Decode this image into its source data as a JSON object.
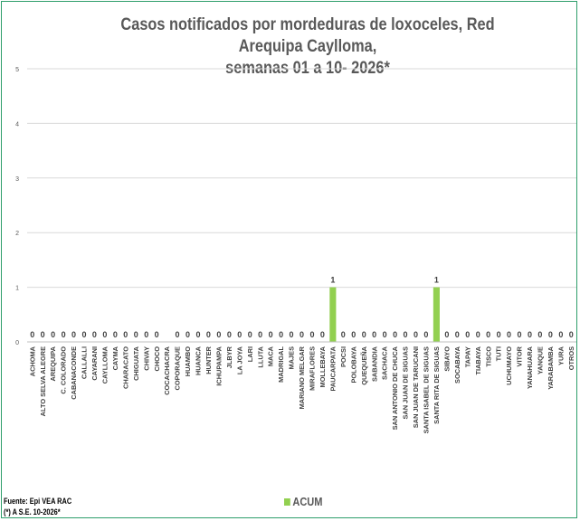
{
  "chart_data": {
    "type": "bar",
    "title": "Casos notificados por mordeduras de loxoceles, Red Arequipa Caylloma,",
    "subtitle": "semanas 01 a 10- 2026*",
    "ylim": [
      0,
      5
    ],
    "yticks": [
      "0",
      "1",
      "2",
      "3",
      "4",
      "5"
    ],
    "grid": true,
    "legend_position": "bottom",
    "categories": [
      "ACHOMA",
      "ALTO SELVA ALEGRE",
      "AREQUIPA",
      "C. COLORADO",
      "CABANACONDE",
      "CALLALLI",
      "CAYARANI",
      "CAYLLOMA",
      "CAYMA",
      "CHARACATO",
      "CHIGUATA",
      "CHIVAY",
      "CHOCO",
      "COCACHACRA",
      "COPORAQUE",
      "HUAMBO",
      "HUANCA",
      "HUNTER",
      "ICHUPAMPA",
      "JLBYR",
      "LA JOYA",
      "LARI",
      "LLUTA",
      "MACA",
      "MADRIGAL",
      "MAJES",
      "MARIANO MELGAR",
      "MIRAFLORES",
      "MOLLEBAYA",
      "PAUCARPATA",
      "POCSI",
      "POLOBAYA",
      "QUEQUEÑA",
      "SABANDIA",
      "SACHACA",
      "SAN ANTONIO DE CHUCA",
      "SAN JUAN DE SIGUAS",
      "SAN JUAN DE TARUCANI",
      "SANTA ISABEL DE SIGUAS",
      "SANTA RITA DE SIGUAS",
      "SIBAYO",
      "SOCABAYA",
      "TAPAY",
      "TIABAYA",
      "TISCO",
      "TUTI",
      "UCHUMAYO",
      "VITOR",
      "YANAHUARA",
      "YANQUE",
      "YARABAMBA",
      "YURA",
      "OTROS"
    ],
    "series": [
      {
        "name": "ACUM",
        "color": "#92d050",
        "values": [
          0,
          0,
          0,
          0,
          0,
          0,
          0,
          0,
          0,
          0,
          0,
          0,
          0,
          0,
          0,
          0,
          0,
          0,
          0,
          0,
          0,
          0,
          0,
          0,
          0,
          0,
          0,
          0,
          0,
          1,
          0,
          0,
          0,
          0,
          0,
          0,
          0,
          0,
          0,
          1,
          0,
          0,
          0,
          0,
          0,
          0,
          0,
          0,
          0,
          0,
          0,
          0,
          0
        ],
        "labels": [
          "0",
          "0",
          "0",
          "0",
          "0",
          "0",
          "0",
          "0",
          "0",
          "0",
          "0",
          "0",
          "0",
          "",
          "0",
          "0",
          "0",
          "0",
          "0",
          "0",
          "0",
          "0",
          "0",
          "0",
          "0",
          "0",
          "0",
          "0",
          "0",
          "1",
          "0",
          "0",
          "0",
          "0",
          "0",
          "0",
          "0",
          "0",
          "0",
          "1",
          "0",
          "0",
          "0",
          "0",
          "0",
          "0",
          "0",
          "0",
          "0",
          "0",
          "0",
          "0",
          "0"
        ]
      }
    ]
  },
  "legend_label": "ACUM",
  "footer": {
    "source": "Fuente: Epi VEA RAC",
    "note": "(*) A S.E. 10-2026*"
  }
}
